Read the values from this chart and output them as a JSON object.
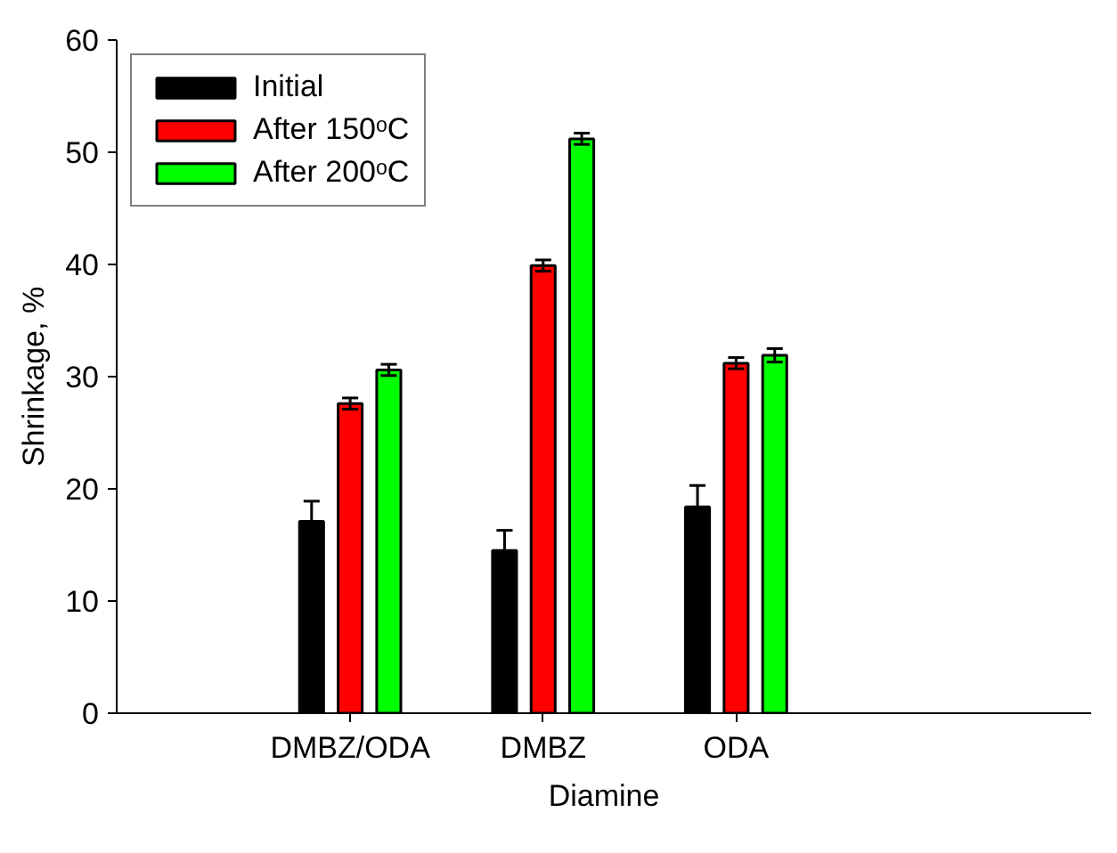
{
  "chart_data": {
    "type": "bar",
    "xlabel": "Diamine",
    "ylabel": "Shrinkage, %",
    "categories": [
      "DMBZ/ODA",
      "DMBZ",
      "ODA"
    ],
    "series": [
      {
        "name": "Initial",
        "color": "#000000",
        "values": [
          17.1,
          14.5,
          18.4
        ],
        "errors": [
          1.8,
          1.8,
          1.9
        ]
      },
      {
        "name": "After 150ᵒC",
        "color": "#ff0000",
        "values": [
          27.6,
          39.9,
          31.2
        ],
        "errors": [
          0.5,
          0.5,
          0.5
        ]
      },
      {
        "name": "After 200ᵒC",
        "color": "#00ff00",
        "values": [
          30.6,
          51.2,
          31.9
        ],
        "errors": [
          0.5,
          0.5,
          0.6
        ]
      }
    ],
    "ylim": [
      0,
      60
    ],
    "yticks": [
      0,
      10,
      20,
      30,
      40,
      50,
      60
    ],
    "grid": false,
    "legend": "top left"
  }
}
